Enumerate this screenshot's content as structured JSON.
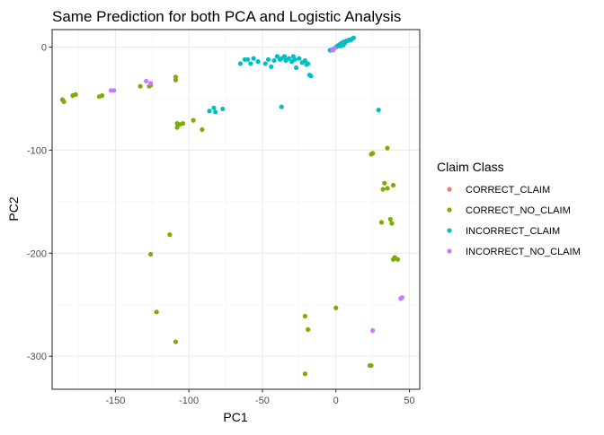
{
  "chart_data": {
    "type": "scatter",
    "title": "Same Prediction for both PCA and Logistic Analysis",
    "xlabel": "PC1",
    "ylabel": "PC2",
    "xlim": [
      -193,
      57
    ],
    "ylim": [
      -332,
      17
    ],
    "x_ticks": [
      -150,
      -100,
      -50,
      0,
      50
    ],
    "x_tick_labels": [
      "-150",
      "-100",
      "-50",
      "0",
      "50"
    ],
    "y_ticks": [
      0,
      -100,
      -200,
      -300
    ],
    "y_tick_labels": [
      "0",
      "-100",
      "-200",
      "-300"
    ],
    "grid": true,
    "legend": {
      "title": "Claim Class",
      "position": "right"
    },
    "series": [
      {
        "name": "CORRECT_CLAIM",
        "color": "#F8766D",
        "points": []
      },
      {
        "name": "CORRECT_NO_CLAIM",
        "color": "#7CAE00",
        "points": [
          [
            -186,
            -51
          ],
          [
            -185,
            -53
          ],
          [
            -179,
            -47
          ],
          [
            -177,
            -46
          ],
          [
            -161,
            -48
          ],
          [
            -159,
            -47
          ],
          [
            -133,
            -38
          ],
          [
            -127,
            -38
          ],
          [
            -126,
            -37
          ],
          [
            -109,
            -29
          ],
          [
            -109,
            -32
          ],
          [
            -108,
            -78
          ],
          [
            -108,
            -74
          ],
          [
            -106,
            -75
          ],
          [
            -104,
            -74
          ],
          [
            -97,
            -71
          ],
          [
            -91,
            -80
          ],
          [
            -113,
            -182
          ],
          [
            -126,
            -201
          ],
          [
            -122,
            -257
          ],
          [
            -109,
            -286
          ],
          [
            -21,
            -261
          ],
          [
            -19,
            -274
          ],
          [
            -21,
            -317
          ],
          [
            0,
            -253
          ],
          [
            24,
            -104
          ],
          [
            25,
            -103
          ],
          [
            32,
            -138
          ],
          [
            33,
            -132
          ],
          [
            35,
            -98
          ],
          [
            35,
            -137
          ],
          [
            37,
            -167
          ],
          [
            38,
            -171
          ],
          [
            39,
            -134
          ],
          [
            31,
            -170
          ],
          [
            39,
            -206
          ],
          [
            40,
            -204
          ],
          [
            42,
            -206
          ],
          [
            23,
            -309
          ],
          [
            24,
            -309
          ]
        ]
      },
      {
        "name": "INCORRECT_CLAIM",
        "color": "#00BFC4",
        "points": [
          [
            -86,
            -62
          ],
          [
            -83,
            -59
          ],
          [
            -82,
            -63
          ],
          [
            -77,
            -60
          ],
          [
            -37,
            -58
          ],
          [
            29,
            -61
          ],
          [
            -65,
            -16
          ],
          [
            -62,
            -12
          ],
          [
            -60,
            -12
          ],
          [
            -58,
            -16
          ],
          [
            -56,
            -11
          ],
          [
            -53,
            -14
          ],
          [
            -48,
            -16
          ],
          [
            -46,
            -12
          ],
          [
            -44,
            -19
          ],
          [
            -42,
            -13
          ],
          [
            -40,
            -9
          ],
          [
            -38,
            -12
          ],
          [
            -37,
            -11
          ],
          [
            -35,
            -9
          ],
          [
            -34,
            -13
          ],
          [
            -32,
            -11
          ],
          [
            -30,
            -14
          ],
          [
            -29,
            -9
          ],
          [
            -28,
            -12
          ],
          [
            -27,
            -20
          ],
          [
            -25,
            -11
          ],
          [
            -23,
            -15
          ],
          [
            -21,
            -13
          ],
          [
            -20,
            -17
          ],
          [
            -18,
            -27
          ],
          [
            -17,
            -28
          ],
          [
            -19,
            -16
          ],
          [
            -4,
            -3
          ],
          [
            -2,
            -2
          ],
          [
            -1,
            -1
          ],
          [
            0,
            0
          ],
          [
            1,
            1
          ],
          [
            2,
            2
          ],
          [
            3,
            3
          ],
          [
            4,
            4
          ],
          [
            5,
            5
          ],
          [
            6,
            4
          ],
          [
            7,
            6
          ],
          [
            8,
            6
          ],
          [
            9,
            7
          ],
          [
            10,
            7
          ],
          [
            11,
            8
          ],
          [
            12,
            9
          ],
          [
            3,
            1
          ],
          [
            5,
            2
          ]
        ]
      },
      {
        "name": "INCORRECT_NO_CLAIM",
        "color": "#C77CFF",
        "points": [
          [
            -153,
            -42
          ],
          [
            -151,
            -42
          ],
          [
            -129,
            -33
          ],
          [
            -126,
            -35
          ],
          [
            -2,
            -3
          ],
          [
            -1,
            -1
          ],
          [
            25,
            -275
          ],
          [
            44,
            -244
          ],
          [
            45,
            -243
          ]
        ]
      }
    ]
  }
}
